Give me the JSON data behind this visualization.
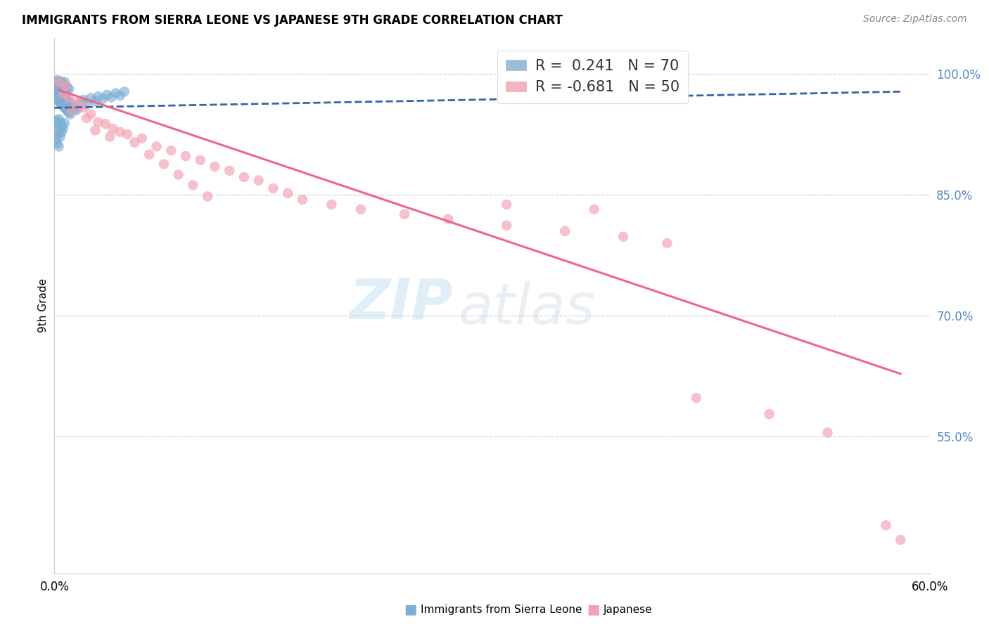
{
  "title": "IMMIGRANTS FROM SIERRA LEONE VS JAPANESE 9TH GRADE CORRELATION CHART",
  "source": "Source: ZipAtlas.com",
  "ylabel": "9th Grade",
  "ytick_labels": [
    "100.0%",
    "85.0%",
    "70.0%",
    "55.0%"
  ],
  "ytick_values": [
    1.0,
    0.85,
    0.7,
    0.55
  ],
  "xlim": [
    0.0,
    0.6
  ],
  "ylim": [
    0.38,
    1.045
  ],
  "legend_r_blue": "R =  0.241",
  "legend_n_blue": "N = 70",
  "legend_r_pink": "R = -0.681",
  "legend_n_pink": "N = 50",
  "blue_color": "#7BAFD4",
  "pink_color": "#F4A0B0",
  "blue_line_color": "#3366AA",
  "pink_line_color": "#EE6688",
  "blue_dots": [
    [
      0.001,
      0.99
    ],
    [
      0.002,
      0.992
    ],
    [
      0.003,
      0.988
    ],
    [
      0.002,
      0.985
    ],
    [
      0.004,
      0.991
    ],
    [
      0.003,
      0.983
    ],
    [
      0.005,
      0.989
    ],
    [
      0.004,
      0.986
    ],
    [
      0.001,
      0.982
    ],
    [
      0.006,
      0.987
    ],
    [
      0.005,
      0.984
    ],
    [
      0.007,
      0.99
    ],
    [
      0.006,
      0.981
    ],
    [
      0.008,
      0.985
    ],
    [
      0.007,
      0.979
    ],
    [
      0.002,
      0.978
    ],
    [
      0.009,
      0.983
    ],
    [
      0.008,
      0.977
    ],
    [
      0.01,
      0.981
    ],
    [
      0.003,
      0.975
    ],
    [
      0.001,
      0.972
    ],
    [
      0.004,
      0.976
    ],
    [
      0.005,
      0.97
    ],
    [
      0.002,
      0.968
    ],
    [
      0.006,
      0.974
    ],
    [
      0.003,
      0.966
    ],
    [
      0.007,
      0.972
    ],
    [
      0.008,
      0.969
    ],
    [
      0.004,
      0.964
    ],
    [
      0.009,
      0.967
    ],
    [
      0.005,
      0.962
    ],
    [
      0.01,
      0.965
    ],
    [
      0.006,
      0.96
    ],
    [
      0.011,
      0.963
    ],
    [
      0.007,
      0.958
    ],
    [
      0.012,
      0.961
    ],
    [
      0.008,
      0.956
    ],
    [
      0.013,
      0.959
    ],
    [
      0.009,
      0.954
    ],
    [
      0.014,
      0.957
    ],
    [
      0.01,
      0.952
    ],
    [
      0.015,
      0.955
    ],
    [
      0.011,
      0.95
    ],
    [
      0.016,
      0.96
    ],
    [
      0.018,
      0.965
    ],
    [
      0.02,
      0.968
    ],
    [
      0.022,
      0.963
    ],
    [
      0.025,
      0.97
    ],
    [
      0.028,
      0.966
    ],
    [
      0.03,
      0.972
    ],
    [
      0.033,
      0.969
    ],
    [
      0.036,
      0.974
    ],
    [
      0.039,
      0.971
    ],
    [
      0.042,
      0.976
    ],
    [
      0.045,
      0.973
    ],
    [
      0.048,
      0.978
    ],
    [
      0.001,
      0.942
    ],
    [
      0.002,
      0.938
    ],
    [
      0.003,
      0.944
    ],
    [
      0.004,
      0.94
    ],
    [
      0.005,
      0.936
    ],
    [
      0.006,
      0.933
    ],
    [
      0.007,
      0.939
    ],
    [
      0.002,
      0.93
    ],
    [
      0.003,
      0.926
    ],
    [
      0.004,
      0.922
    ],
    [
      0.005,
      0.928
    ],
    [
      0.001,
      0.918
    ],
    [
      0.002,
      0.914
    ],
    [
      0.003,
      0.91
    ]
  ],
  "pink_dots": [
    [
      0.003,
      0.99
    ],
    [
      0.008,
      0.985
    ],
    [
      0.006,
      0.975
    ],
    [
      0.01,
      0.97
    ],
    [
      0.015,
      0.965
    ],
    [
      0.018,
      0.96
    ],
    [
      0.012,
      0.955
    ],
    [
      0.02,
      0.958
    ],
    [
      0.025,
      0.95
    ],
    [
      0.022,
      0.945
    ],
    [
      0.03,
      0.94
    ],
    [
      0.035,
      0.938
    ],
    [
      0.04,
      0.932
    ],
    [
      0.028,
      0.93
    ],
    [
      0.045,
      0.928
    ],
    [
      0.05,
      0.925
    ],
    [
      0.038,
      0.922
    ],
    [
      0.06,
      0.92
    ],
    [
      0.055,
      0.915
    ],
    [
      0.07,
      0.91
    ],
    [
      0.08,
      0.905
    ],
    [
      0.065,
      0.9
    ],
    [
      0.09,
      0.898
    ],
    [
      0.1,
      0.893
    ],
    [
      0.075,
      0.888
    ],
    [
      0.11,
      0.885
    ],
    [
      0.12,
      0.88
    ],
    [
      0.085,
      0.875
    ],
    [
      0.13,
      0.872
    ],
    [
      0.14,
      0.868
    ],
    [
      0.095,
      0.862
    ],
    [
      0.15,
      0.858
    ],
    [
      0.16,
      0.852
    ],
    [
      0.105,
      0.848
    ],
    [
      0.17,
      0.844
    ],
    [
      0.19,
      0.838
    ],
    [
      0.21,
      0.832
    ],
    [
      0.24,
      0.826
    ],
    [
      0.27,
      0.82
    ],
    [
      0.31,
      0.812
    ],
    [
      0.35,
      0.805
    ],
    [
      0.39,
      0.798
    ],
    [
      0.42,
      0.79
    ],
    [
      0.31,
      0.838
    ],
    [
      0.37,
      0.832
    ],
    [
      0.44,
      0.598
    ],
    [
      0.49,
      0.578
    ],
    [
      0.53,
      0.555
    ],
    [
      0.57,
      0.44
    ],
    [
      0.58,
      0.422
    ]
  ],
  "blue_trend_x": [
    0.0,
    0.58
  ],
  "blue_trend_y": [
    0.958,
    0.978
  ],
  "pink_trend_x": [
    0.003,
    0.58
  ],
  "pink_trend_y": [
    0.98,
    0.628
  ],
  "watermark_zip": "ZIP",
  "watermark_atlas": "atlas",
  "grid_color": "#CCCCCC",
  "bg_color": "#FFFFFF",
  "right_tick_color": "#5588CC",
  "legend_border_color": "#DDDDDD"
}
